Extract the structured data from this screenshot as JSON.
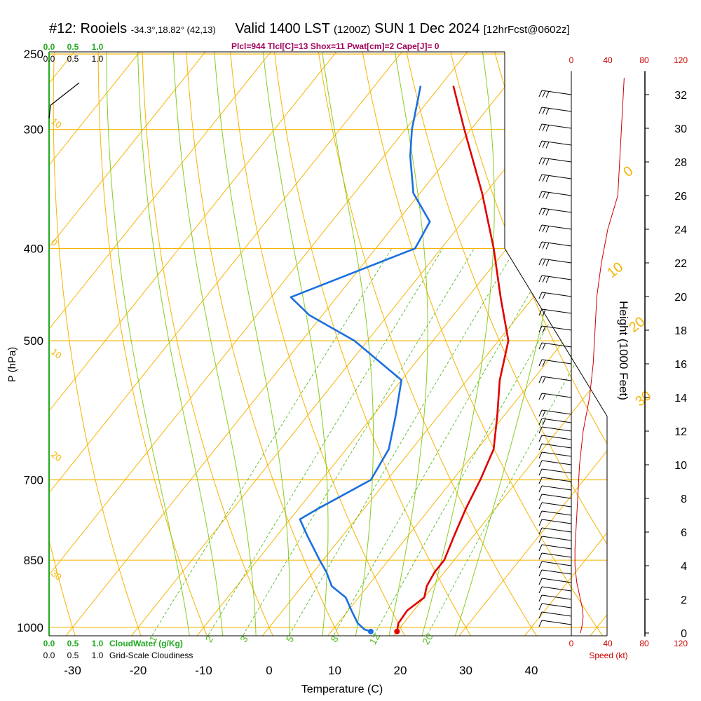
{
  "header": {
    "station": "#12: Rooiels",
    "coords": "-34.3°,18.82° (42,13)",
    "valid": "Valid 1400 LST",
    "zulu": "(1200Z)",
    "date": "SUN 1 Dec 2024",
    "forecast": "[12hrFcst@0602z]",
    "indices": "Plcl=944 Tlcl[C]=13 Shox=11 Pwat[cm]=2 Cape[J]= 0"
  },
  "legend": {
    "cloudwater_ticks_top": [
      "0.0",
      "0.5",
      "1.0"
    ],
    "cloudiness_ticks_top": [
      "0.0",
      "0.5",
      "1.0"
    ],
    "cloudwater_ticks_bottom": [
      "0.0",
      "0.5",
      "1.0"
    ],
    "cloudwater_label": "CloudWater (g/Kg)",
    "cloudiness_ticks_bottom": [
      "0.0",
      "0.5",
      "1.0"
    ],
    "cloudiness_label": "Grid-Scale Cloudiness",
    "speed_label": "Speed (kt)",
    "speed_ticks_top": [
      "0",
      "40",
      "80",
      "120"
    ],
    "speed_ticks_bottom": [
      "0",
      "40",
      "80",
      "120"
    ]
  },
  "colors": {
    "isotherm": "#f5b400",
    "dry_adiabat": "#f5b400",
    "moist_adiabat": "#88cc22",
    "mixing_ratio": "#55bb22",
    "temperature": "#e00000",
    "dewpoint": "#1a6fe0",
    "cloud": "#22aa22",
    "speed": "#cc0000",
    "indices": "#a0005a"
  },
  "chart_data": {
    "type": "line",
    "subtype": "skew-T log-P sounding",
    "xlabel": "Temperature (C)",
    "ylabel": "P (hPa)",
    "y2label": "Height (1000 Feet)",
    "x_ticks": [
      -30,
      -20,
      -10,
      0,
      10,
      20,
      30,
      40
    ],
    "p_ticks": [
      250,
      300,
      400,
      500,
      700,
      850,
      1000
    ],
    "height_ticks": [
      0,
      2,
      4,
      6,
      8,
      10,
      12,
      14,
      16,
      18,
      20,
      22,
      24,
      26,
      28,
      30,
      32
    ],
    "xlim": [
      -34,
      36
    ],
    "plim": [
      1000,
      250
    ],
    "isotherm_labels": [
      {
        "text": "0",
        "t": 0,
        "p": 335
      },
      {
        "text": "10",
        "t": 10,
        "p": 425
      },
      {
        "text": "20",
        "t": 20,
        "p": 485
      },
      {
        "text": "30",
        "t": 30,
        "p": 580
      }
    ],
    "left_labels": [
      {
        "text": "10",
        "p": 295
      },
      {
        "text": "0",
        "p": 395
      },
      {
        "text": "10",
        "p": 515
      },
      {
        "text": "20",
        "p": 660
      },
      {
        "text": "30",
        "p": 880
      }
    ],
    "mixing_ratio_labels": [
      "1",
      "2",
      "3",
      "5",
      "8",
      "12",
      "20"
    ],
    "mixing_ratios": [
      1,
      2,
      3,
      5,
      8,
      12,
      20
    ],
    "series": [
      {
        "name": "Temperature",
        "points": [
          [
            1010,
            20.0
          ],
          [
            990,
            19.2
          ],
          [
            960,
            19.0
          ],
          [
            930,
            20.0
          ],
          [
            905,
            19.0
          ],
          [
            875,
            18.5
          ],
          [
            850,
            18.5
          ],
          [
            800,
            17.0
          ],
          [
            750,
            15.5
          ],
          [
            700,
            14.2
          ],
          [
            650,
            12.5
          ],
          [
            600,
            9.0
          ],
          [
            550,
            5.0
          ],
          [
            500,
            1.5
          ],
          [
            450,
            -5.0
          ],
          [
            400,
            -12.0
          ],
          [
            350,
            -20.5
          ],
          [
            300,
            -31.0
          ],
          [
            270,
            -38.0
          ]
        ]
      },
      {
        "name": "Dewpoint",
        "points": [
          [
            1010,
            16.0
          ],
          [
            1005,
            14.8
          ],
          [
            990,
            13.0
          ],
          [
            960,
            10.5
          ],
          [
            930,
            8.0
          ],
          [
            905,
            4.5
          ],
          [
            875,
            2.0
          ],
          [
            850,
            -0.5
          ],
          [
            800,
            -5.5
          ],
          [
            770,
            -8.5
          ],
          [
            750,
            -7.0
          ],
          [
            700,
            -2.5
          ],
          [
            650,
            -3.5
          ],
          [
            600,
            -6.5
          ],
          [
            550,
            -10.0
          ],
          [
            500,
            -22.0
          ],
          [
            470,
            -32.0
          ],
          [
            450,
            -37.0
          ],
          [
            400,
            -24.0
          ],
          [
            375,
            -25.0
          ],
          [
            350,
            -31.0
          ],
          [
            320,
            -36.0
          ],
          [
            300,
            -39.0
          ],
          [
            270,
            -43.0
          ]
        ]
      }
    ],
    "speed_profile": {
      "name": "Speed (kt)",
      "xlim": [
        0,
        120
      ],
      "points": [
        [
          0,
          10
        ],
        [
          0.5,
          12
        ],
        [
          1,
          13
        ],
        [
          1.5,
          12
        ],
        [
          2,
          10
        ],
        [
          3,
          6
        ],
        [
          4,
          4
        ],
        [
          5,
          4
        ],
        [
          6,
          5
        ],
        [
          8,
          7
        ],
        [
          10,
          9
        ],
        [
          12,
          13
        ],
        [
          14,
          20
        ],
        [
          16,
          24
        ],
        [
          18,
          26
        ],
        [
          20,
          28
        ],
        [
          22,
          33
        ],
        [
          24,
          40
        ],
        [
          26,
          51
        ],
        [
          28,
          53
        ],
        [
          30,
          55
        ],
        [
          32,
          57
        ],
        [
          33,
          58
        ]
      ]
    },
    "wind_barbs": {
      "levels_kft": [
        0.5,
        1,
        1.5,
        2,
        2.5,
        3,
        3.5,
        4,
        4.5,
        5,
        5.5,
        6,
        6.5,
        7,
        7.5,
        8,
        8.5,
        9,
        9.5,
        10,
        10.5,
        11,
        11.5,
        12,
        12.5,
        13,
        14,
        15,
        16,
        17,
        18,
        19,
        20,
        21,
        22,
        23,
        24,
        25,
        26,
        27,
        28,
        29,
        30,
        31,
        32
      ]
    }
  }
}
